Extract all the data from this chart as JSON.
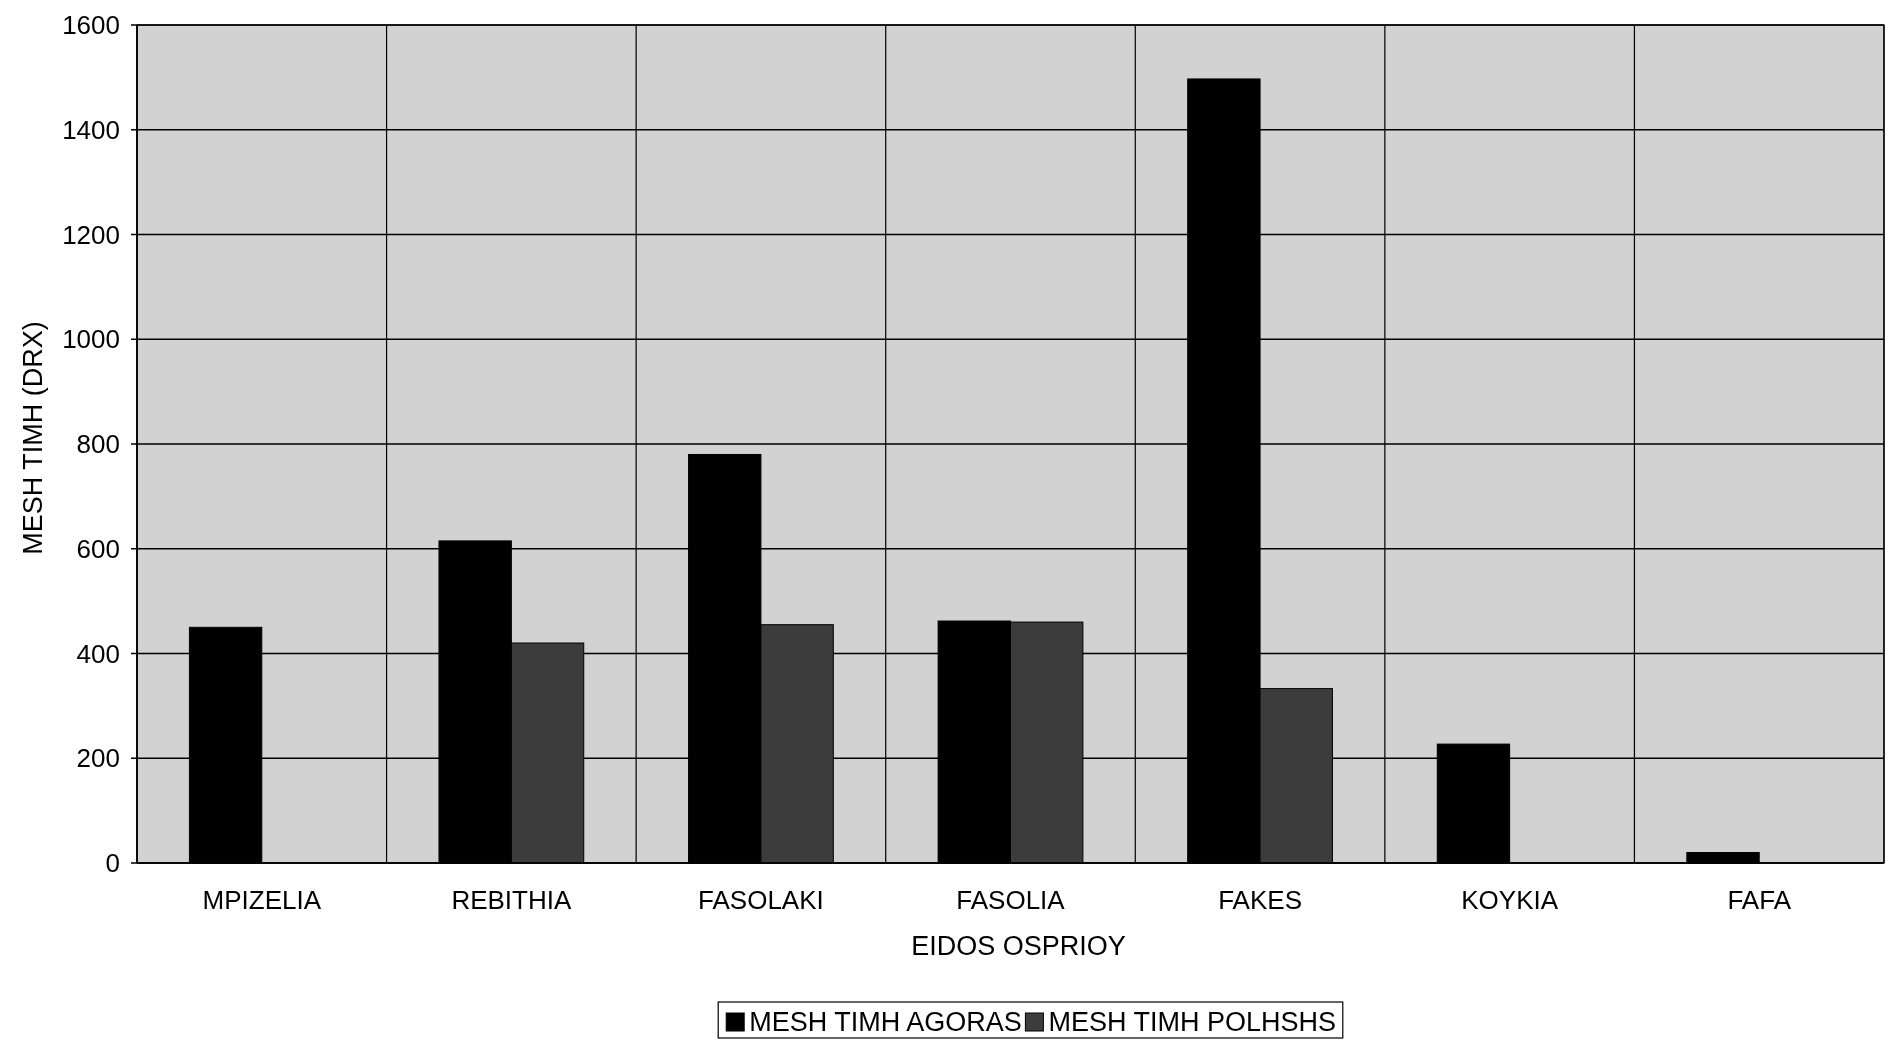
{
  "chart_data": {
    "type": "bar",
    "xlabel": "EIDOS OSPRIOY",
    "ylabel": "MESH TIMH (DRX)",
    "categories": [
      "MPIZELIA",
      "REBITHIA",
      "FASOLAKI",
      "FASOLIA",
      "FAKES",
      "KOYKIA",
      "FAFA"
    ],
    "series": [
      {
        "name": "MESH TIMH AGORAS",
        "color": "#000000",
        "values": [
          450,
          615,
          780,
          462,
          1497,
          227,
          20
        ]
      },
      {
        "name": "MESH TIMH POLHSHS",
        "color": "#3c3c3c",
        "values": [
          null,
          420,
          455,
          460,
          333,
          null,
          null
        ]
      }
    ],
    "ylim": [
      0,
      1600
    ],
    "yticks": [
      0,
      200,
      400,
      600,
      800,
      1000,
      1200,
      1400,
      1600
    ],
    "grid": true,
    "legend": "bottom"
  }
}
